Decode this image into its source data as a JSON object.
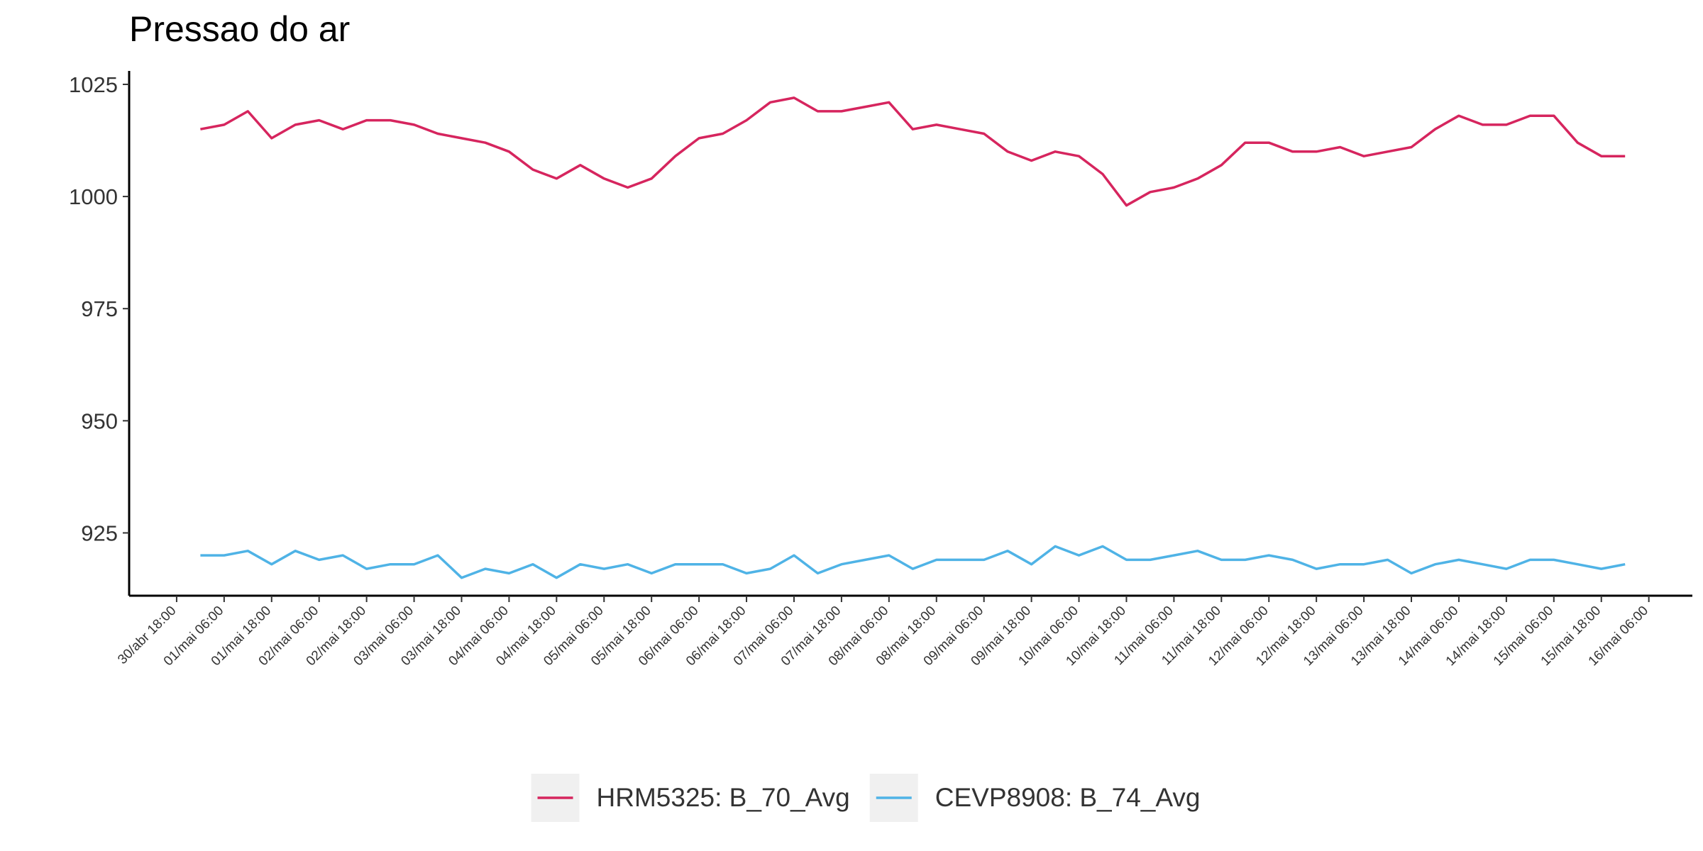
{
  "chart_data": {
    "type": "line",
    "title": "Pressao do ar",
    "x": [
      "01/mai 00:00",
      "01/mai 06:00",
      "01/mai 12:00",
      "01/mai 18:00",
      "02/mai 00:00",
      "02/mai 06:00",
      "02/mai 12:00",
      "02/mai 18:00",
      "03/mai 00:00",
      "03/mai 06:00",
      "03/mai 12:00",
      "03/mai 18:00",
      "04/mai 00:00",
      "04/mai 06:00",
      "04/mai 12:00",
      "04/mai 18:00",
      "05/mai 00:00",
      "05/mai 06:00",
      "05/mai 12:00",
      "05/mai 18:00",
      "06/mai 00:00",
      "06/mai 06:00",
      "06/mai 12:00",
      "06/mai 18:00",
      "07/mai 00:00",
      "07/mai 06:00",
      "07/mai 12:00",
      "07/mai 18:00",
      "08/mai 00:00",
      "08/mai 06:00",
      "08/mai 12:00",
      "08/mai 18:00",
      "09/mai 00:00",
      "09/mai 06:00",
      "09/mai 12:00",
      "09/mai 18:00",
      "10/mai 00:00",
      "10/mai 06:00",
      "10/mai 12:00",
      "10/mai 18:00",
      "11/mai 00:00",
      "11/mai 06:00",
      "11/mai 12:00",
      "11/mai 18:00",
      "12/mai 00:00",
      "12/mai 06:00",
      "12/mai 12:00",
      "12/mai 18:00",
      "13/mai 00:00",
      "13/mai 06:00",
      "13/mai 12:00",
      "13/mai 18:00",
      "14/mai 00:00",
      "14/mai 06:00",
      "14/mai 12:00",
      "14/mai 18:00",
      "15/mai 00:00",
      "15/mai 06:00",
      "15/mai 12:00",
      "15/mai 18:00",
      "16/mai 00:00"
    ],
    "series": [
      {
        "name": "HRM5325: B_70_Avg",
        "color": "#d6255e",
        "values": [
          1015,
          1016,
          1019,
          1013,
          1016,
          1017,
          1015,
          1017,
          1017,
          1016,
          1014,
          1013,
          1012,
          1010,
          1006,
          1004,
          1007,
          1004,
          1002,
          1004,
          1009,
          1013,
          1014,
          1017,
          1021,
          1022,
          1019,
          1019,
          1020,
          1021,
          1015,
          1016,
          1015,
          1014,
          1010,
          1008,
          1010,
          1009,
          1005,
          998,
          1001,
          1002,
          1004,
          1007,
          1012,
          1012,
          1010,
          1010,
          1011,
          1009,
          1010,
          1011,
          1015,
          1018,
          1016,
          1016,
          1018,
          1018,
          1012,
          1009,
          1009
        ]
      },
      {
        "name": "CEVP8908: B_74_Avg",
        "color": "#4fb3e6",
        "values": [
          920,
          920,
          921,
          918,
          921,
          919,
          920,
          917,
          918,
          918,
          920,
          915,
          917,
          916,
          918,
          915,
          918,
          917,
          918,
          916,
          918,
          918,
          918,
          916,
          917,
          920,
          916,
          918,
          919,
          920,
          917,
          919,
          919,
          919,
          921,
          918,
          922,
          920,
          922,
          919,
          919,
          920,
          921,
          919,
          919,
          920,
          919,
          917,
          918,
          918,
          919,
          916,
          918,
          919,
          918,
          917,
          919,
          919,
          918,
          917,
          918
        ]
      }
    ],
    "xlim": [
      "30/abr 06:00",
      "16/mai 17:00"
    ],
    "xticks": [
      "30/abr 18:00",
      "01/mai 06:00",
      "01/mai 18:00",
      "02/mai 06:00",
      "02/mai 18:00",
      "03/mai 06:00",
      "03/mai 18:00",
      "04/mai 06:00",
      "04/mai 18:00",
      "05/mai 06:00",
      "05/mai 18:00",
      "06/mai 06:00",
      "06/mai 18:00",
      "07/mai 06:00",
      "07/mai 18:00",
      "08/mai 06:00",
      "08/mai 18:00",
      "09/mai 06:00",
      "09/mai 18:00",
      "10/mai 06:00",
      "10/mai 18:00",
      "11/mai 06:00",
      "11/mai 18:00",
      "12/mai 06:00",
      "12/mai 18:00",
      "13/mai 06:00",
      "13/mai 18:00",
      "14/mai 06:00",
      "14/mai 18:00",
      "15/mai 06:00",
      "15/mai 18:00",
      "16/mai 06:00"
    ],
    "ylim": [
      911,
      1028
    ],
    "yticks": [
      925,
      950,
      975,
      1000,
      1025
    ],
    "grid": false,
    "legend": "bottom"
  }
}
